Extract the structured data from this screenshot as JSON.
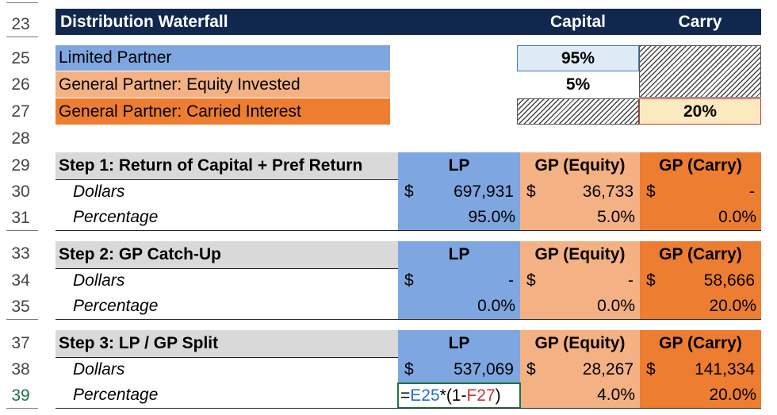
{
  "row_numbers": [
    "23",
    "25",
    "26",
    "27",
    "28",
    "29",
    "30",
    "31",
    "33",
    "34",
    "35",
    "37",
    "38",
    "39"
  ],
  "header": {
    "title": "Distribution Waterfall",
    "capital_label": "Capital",
    "carry_label": "Carry"
  },
  "partners": [
    {
      "label": "Limited Partner",
      "capital": "95%"
    },
    {
      "label": "General Partner: Equity Invested",
      "capital": "5%"
    },
    {
      "label": "General Partner: Carried Interest",
      "carry": "20%"
    }
  ],
  "columns": {
    "lp": "LP",
    "gp_equity": "GP (Equity)",
    "gp_carry": "GP (Carry)"
  },
  "row_labels": {
    "dollars": "Dollars",
    "percentage": "Percentage",
    "currency": "$"
  },
  "steps": [
    {
      "title": "Step 1: Return of Capital + Pref Return",
      "lp_dollars": "697,931",
      "gpe_dollars": "36,733",
      "gpc_dollars": "-",
      "lp_pct": "95.0%",
      "gpe_pct": "5.0%",
      "gpc_pct": "0.0%"
    },
    {
      "title": "Step 2: GP Catch-Up",
      "lp_dollars": "-",
      "gpe_dollars": "-",
      "gpc_dollars": "58,666",
      "lp_pct": "0.0%",
      "gpe_pct": "0.0%",
      "gpc_pct": "20.0%"
    },
    {
      "title": "Step 3: LP / GP Split",
      "lp_dollars": "537,069",
      "gpe_dollars": "28,267",
      "gpc_dollars": "141,334",
      "formula_eq": "=",
      "formula_ref1": "E25",
      "formula_mid": "*(1-",
      "formula_ref2": "F27",
      "formula_end": ")",
      "gpe_pct": "4.0%",
      "gpc_pct": "20.0%"
    }
  ],
  "colors": {
    "header_bg": "#10284e",
    "lp_bg": "#7ea6e0",
    "gp_equity_bg": "#f4b183",
    "gp_carry_bg": "#ed7d31",
    "step_bg": "#d9d9d9",
    "carry_input_bg": "#fde9c0"
  }
}
